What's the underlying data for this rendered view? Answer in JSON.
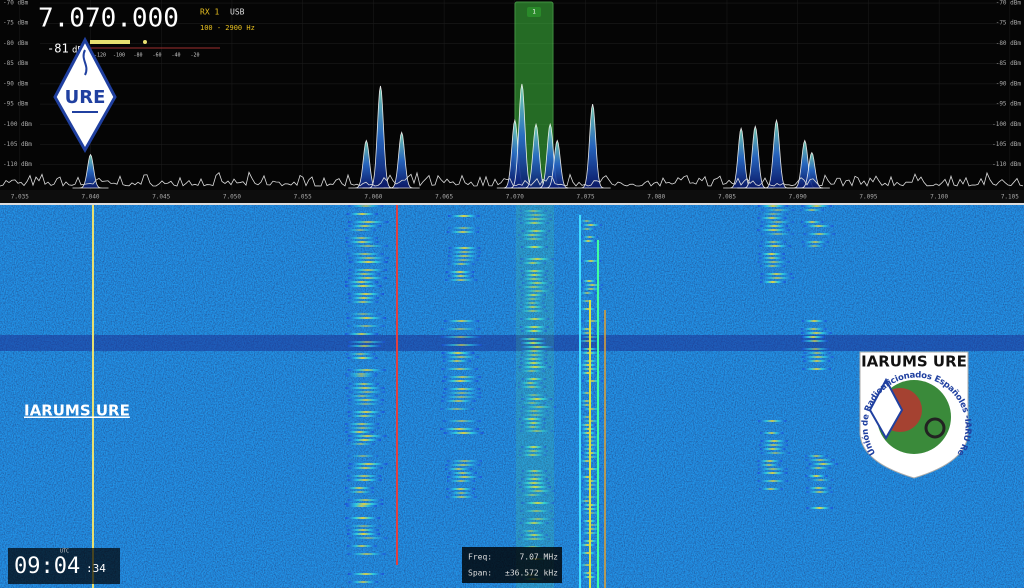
{
  "header": {
    "frequency": "7.070.000",
    "rx": "RX 1",
    "mode": "USB",
    "bandwidth": "100 - 2900 Hz",
    "level": "-81",
    "level_unit": "dB",
    "meter_ticks": [
      "-120",
      "-100",
      "-80",
      "-60",
      "-40",
      "-20"
    ]
  },
  "spectrum": {
    "ylim": [
      -116.25,
      -69.25
    ],
    "xlim": [
      7.0336,
      7.106
    ],
    "yticks": [
      {
        "value": -70,
        "label": "-70 dBm"
      },
      {
        "value": -75,
        "label": "-75 dBm"
      },
      {
        "value": -80,
        "label": "-80 dBm"
      },
      {
        "value": -85,
        "label": "-85 dBm"
      },
      {
        "value": -90,
        "label": "-90 dBm"
      },
      {
        "value": -95,
        "label": "-95 dBm"
      },
      {
        "value": -100,
        "label": "-100 dBm"
      },
      {
        "value": -105,
        "label": "-105 dBm"
      },
      {
        "value": -110,
        "label": "-110 dBm"
      }
    ],
    "xticks": [
      {
        "value": 7.035,
        "label": "7.035"
      },
      {
        "value": 7.04,
        "label": "7.040"
      },
      {
        "value": 7.045,
        "label": "7.045"
      },
      {
        "value": 7.05,
        "label": "7.050"
      },
      {
        "value": 7.055,
        "label": "7.055"
      },
      {
        "value": 7.06,
        "label": "7.060"
      },
      {
        "value": 7.065,
        "label": "7.065"
      },
      {
        "value": 7.07,
        "label": "7.070"
      },
      {
        "value": 7.075,
        "label": "7.075"
      },
      {
        "value": 7.08,
        "label": "7.080"
      },
      {
        "value": 7.085,
        "label": "7.085"
      },
      {
        "value": 7.09,
        "label": "7.090"
      },
      {
        "value": 7.095,
        "label": "7.095"
      },
      {
        "value": 7.1,
        "label": "7.100"
      },
      {
        "value": 7.105,
        "label": "7.105"
      }
    ],
    "signals": [
      {
        "freq": 7.04,
        "level": -107.5
      },
      {
        "freq": 7.0595,
        "level": -104
      },
      {
        "freq": 7.0605,
        "level": -90.5
      },
      {
        "freq": 7.062,
        "level": -102
      },
      {
        "freq": 7.07,
        "level": -99
      },
      {
        "freq": 7.0705,
        "level": -90
      },
      {
        "freq": 7.0715,
        "level": -100
      },
      {
        "freq": 7.0725,
        "level": -100
      },
      {
        "freq": 7.073,
        "level": -104
      },
      {
        "freq": 7.0755,
        "level": -95
      },
      {
        "freq": 7.086,
        "level": -101
      },
      {
        "freq": 7.087,
        "level": -100.5
      },
      {
        "freq": 7.0885,
        "level": -99
      },
      {
        "freq": 7.0905,
        "level": -104
      },
      {
        "freq": 7.091,
        "level": -107
      }
    ],
    "passband_label": "1"
  },
  "logo": {
    "text": "URE"
  },
  "overlay_label": "IARUMS URE",
  "badge": {
    "title": "IARUMS URE",
    "arc_text": "Unión de Radioaficionados Españoles -IARU Región 1"
  },
  "clock": {
    "zone": "UTC",
    "hm": "09:04",
    "seconds": ":34"
  },
  "info": {
    "freq_label": "Freq:",
    "freq_value": "7.07 MHz",
    "span_label": "Span:",
    "span_value": "±36.572 kHz"
  }
}
